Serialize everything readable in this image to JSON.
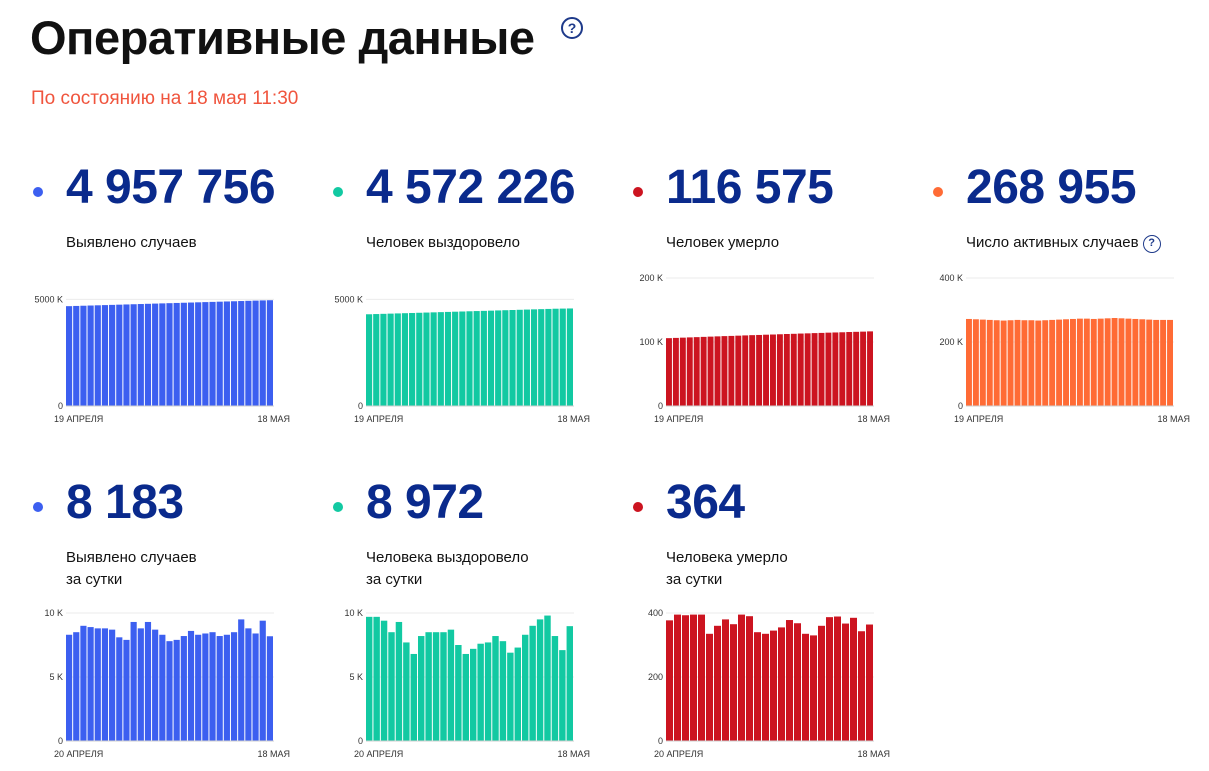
{
  "header": {
    "title": "Оперативные данные",
    "help_glyph": "?",
    "subtitle": "По состоянию на 18 мая 11:30"
  },
  "cards": [
    {
      "value": "4 957 756",
      "label_lines": [
        "Выявлено случаев"
      ],
      "has_help": false,
      "color": "#3c5ff0",
      "dot_color": "#3c5ff0",
      "chart_data": {
        "type": "bar",
        "x_start_label": "19 АПРЕЛЯ",
        "x_end_label": "18 МАЯ",
        "ylim": [
          0,
          6000
        ],
        "y_ticks": [
          {
            "value": 0,
            "label": "0"
          },
          {
            "value": 5000,
            "label": "5000 K"
          }
        ],
        "values": [
          4680,
          4690,
          4700,
          4710,
          4720,
          4730,
          4740,
          4750,
          4760,
          4770,
          4780,
          4790,
          4800,
          4810,
          4820,
          4830,
          4840,
          4850,
          4860,
          4870,
          4880,
          4890,
          4900,
          4910,
          4920,
          4930,
          4940,
          4950,
          4958
        ]
      }
    },
    {
      "value": "4 572 226",
      "label_lines": [
        "Человек выздоровело"
      ],
      "has_help": false,
      "color": "#12c9a2",
      "dot_color": "#12c9a2",
      "chart_data": {
        "type": "bar",
        "x_start_label": "19 АПРЕЛЯ",
        "x_end_label": "18 МАЯ",
        "ylim": [
          0,
          6000
        ],
        "y_ticks": [
          {
            "value": 0,
            "label": "0"
          },
          {
            "value": 5000,
            "label": "5000 K"
          }
        ],
        "values": [
          4300,
          4310,
          4320,
          4330,
          4340,
          4350,
          4360,
          4370,
          4380,
          4390,
          4400,
          4410,
          4420,
          4430,
          4440,
          4450,
          4460,
          4470,
          4480,
          4490,
          4500,
          4510,
          4520,
          4530,
          4540,
          4550,
          4560,
          4566,
          4572
        ]
      }
    },
    {
      "value": "116 575",
      "label_lines": [
        "Человек умерло"
      ],
      "has_help": false,
      "color": "#cc1420",
      "dot_color": "#cc1420",
      "chart_data": {
        "type": "bar",
        "x_start_label": "19 АПРЕЛЯ",
        "x_end_label": "18 МАЯ",
        "ylim": [
          0,
          200
        ],
        "y_ticks": [
          {
            "value": 0,
            "label": "0"
          },
          {
            "value": 100,
            "label": "100 K"
          },
          {
            "value": 200,
            "label": "200 K"
          }
        ],
        "values": [
          106,
          106.4,
          106.8,
          107.2,
          107.6,
          108,
          108.4,
          108.8,
          109.2,
          109.5,
          109.9,
          110.3,
          110.7,
          111,
          111.4,
          111.7,
          112.1,
          112.5,
          112.8,
          113.2,
          113.5,
          113.9,
          114.2,
          114.6,
          114.9,
          115.2,
          115.6,
          115.9,
          116.2,
          116.6
        ]
      }
    },
    {
      "value": "268 955",
      "label_lines": [
        "Число активных случаев"
      ],
      "has_help": true,
      "color": "#ff6b35",
      "dot_color": "#ff6b35",
      "chart_data": {
        "type": "bar",
        "x_start_label": "19 АПРЕЛЯ",
        "x_end_label": "18 МАЯ",
        "ylim": [
          0,
          400
        ],
        "y_ticks": [
          {
            "value": 0,
            "label": "0"
          },
          {
            "value": 200,
            "label": "200 K"
          },
          {
            "value": 400,
            "label": "400 K"
          }
        ],
        "values": [
          272,
          271,
          270,
          269,
          268,
          267,
          268,
          269,
          268,
          268,
          267,
          268,
          269,
          270,
          271,
          272,
          273,
          273,
          272,
          273,
          274,
          275,
          274,
          273,
          272,
          271,
          270,
          269,
          269,
          269
        ]
      }
    },
    {
      "value": "8 183",
      "label_lines": [
        "Выявлено случаев",
        "за сутки"
      ],
      "has_help": false,
      "color": "#3c5ff0",
      "dot_color": "#3c5ff0",
      "chart_data": {
        "type": "bar",
        "x_start_label": "20 АПРЕЛЯ",
        "x_end_label": "18 МАЯ",
        "ylim": [
          0,
          10000
        ],
        "y_ticks": [
          {
            "value": 0,
            "label": "0"
          },
          {
            "value": 5000,
            "label": "5 K"
          },
          {
            "value": 10000,
            "label": "10 K"
          }
        ],
        "values": [
          8300,
          8500,
          9000,
          8900,
          8800,
          8800,
          8700,
          8100,
          7900,
          9300,
          8800,
          9300,
          8700,
          8300,
          7800,
          7900,
          8200,
          8600,
          8300,
          8400,
          8500,
          8200,
          8300,
          8500,
          9500,
          8800,
          8400,
          9400,
          8183
        ]
      }
    },
    {
      "value": "8 972",
      "label_lines": [
        "Человека выздоровело",
        "за сутки"
      ],
      "has_help": false,
      "color": "#12c9a2",
      "dot_color": "#12c9a2",
      "chart_data": {
        "type": "bar",
        "x_start_label": "20 АПРЕЛЯ",
        "x_end_label": "18 МАЯ",
        "ylim": [
          0,
          10000
        ],
        "y_ticks": [
          {
            "value": 0,
            "label": "0"
          },
          {
            "value": 5000,
            "label": "5 K"
          },
          {
            "value": 10000,
            "label": "10 K"
          }
        ],
        "values": [
          9700,
          9700,
          9400,
          8500,
          9300,
          7700,
          6800,
          8200,
          8500,
          8500,
          8500,
          8700,
          7500,
          6800,
          7200,
          7600,
          7700,
          8200,
          7800,
          6900,
          7300,
          8300,
          9000,
          9500,
          9800,
          8200,
          7100,
          8972
        ]
      }
    },
    {
      "value": "364",
      "label_lines": [
        "Человека умерло",
        "за сутки"
      ],
      "has_help": false,
      "color": "#cc1420",
      "dot_color": "#cc1420",
      "chart_data": {
        "type": "bar",
        "x_start_label": "20 АПРЕЛЯ",
        "x_end_label": "18 МАЯ",
        "ylim": [
          0,
          400
        ],
        "y_ticks": [
          {
            "value": 0,
            "label": "0"
          },
          {
            "value": 200,
            "label": "200"
          },
          {
            "value": 400,
            "label": "400"
          }
        ],
        "values": [
          377,
          395,
          393,
          395,
          395,
          335,
          360,
          380,
          365,
          395,
          390,
          340,
          335,
          345,
          355,
          378,
          368,
          335,
          330,
          360,
          387,
          389,
          367,
          385,
          343,
          364
        ]
      }
    }
  ]
}
